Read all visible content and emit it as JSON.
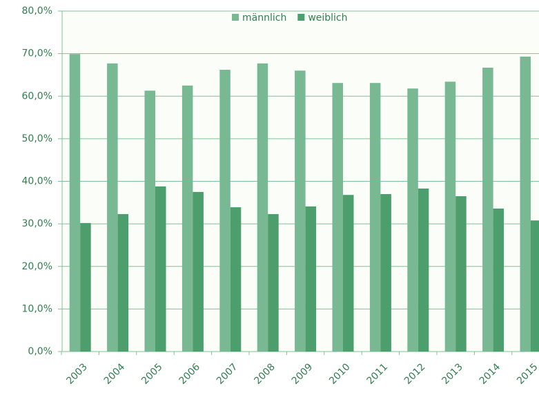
{
  "chart_data": {
    "type": "bar",
    "categories": [
      "2003",
      "2004",
      "2005",
      "2006",
      "2007",
      "2008",
      "2009",
      "2010",
      "2011",
      "2012",
      "2013",
      "2014",
      "2015"
    ],
    "series": [
      {
        "name": "männlich",
        "color": "#78b994",
        "values": [
          69.9,
          67.7,
          61.3,
          62.5,
          66.2,
          67.7,
          66.0,
          63.1,
          63.1,
          61.8,
          63.4,
          66.7,
          69.3
        ]
      },
      {
        "name": "weiblich",
        "color": "#4c9f6c",
        "values": [
          30.2,
          32.3,
          38.8,
          37.5,
          33.9,
          32.3,
          34.1,
          36.8,
          37.0,
          38.3,
          36.5,
          33.6,
          30.8
        ]
      }
    ],
    "ylim": [
      0,
      80
    ],
    "yticks": [
      {
        "value": 0,
        "label": "0,0%"
      },
      {
        "value": 10,
        "label": "10,0%"
      },
      {
        "value": 20,
        "label": "20,0%"
      },
      {
        "value": 30,
        "label": "30,0%"
      },
      {
        "value": 40,
        "label": "40,0%"
      },
      {
        "value": 50,
        "label": "50,0%"
      },
      {
        "value": 60,
        "label": "60,0%"
      },
      {
        "value": 70,
        "label": "70,0%"
      },
      {
        "value": 80,
        "label": "80,0%"
      }
    ],
    "grid": true,
    "legend": "top"
  }
}
